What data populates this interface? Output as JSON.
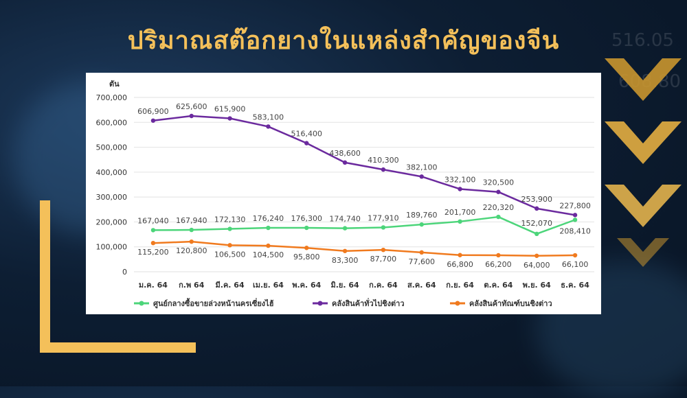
{
  "slide": {
    "title": "ปริมาณสต๊อกยางในแหล่งสำคัญของจีน"
  },
  "colors": {
    "title": "#f4c05a",
    "accent": "#f4c05a",
    "series_green": "#4cd57a",
    "series_purple": "#6b2a9e",
    "series_orange": "#f07a1e"
  },
  "chart_data": {
    "type": "line",
    "ylabel": "ตัน",
    "ylim": [
      0,
      700000
    ],
    "yticks": [
      0,
      100000,
      200000,
      300000,
      400000,
      500000,
      600000,
      700000
    ],
    "ytick_labels": [
      "0",
      "100,000",
      "200,000",
      "300,000",
      "400,000",
      "500,000",
      "600,000",
      "700,000"
    ],
    "grid": true,
    "legend_position": "bottom",
    "categories": [
      "ม.ค. 64",
      "ก.พ 64",
      "มี.ค. 64",
      "เม.ย. 64",
      "พ.ค. 64",
      "มิ.ย. 64",
      "ก.ค. 64",
      "ส.ค. 64",
      "ก.ย. 64",
      "ต.ค. 64",
      "พ.ย. 64",
      "ธ.ค. 64"
    ],
    "series": [
      {
        "name": "ศูนย์กลางซื้อขายล่วงหน้านครเซี่ยงไฮ้",
        "color": "#4cd57a",
        "values": [
          167040,
          167940,
          172130,
          176240,
          176300,
          174740,
          177910,
          189760,
          201700,
          220320,
          152070,
          208410
        ],
        "labels": [
          "167,040",
          "167,940",
          "172,130",
          "176,240",
          "176,300",
          "174,740",
          "177,910",
          "189,760",
          "201,700",
          "220,320",
          "152,070",
          "208,410"
        ]
      },
      {
        "name": "คลังสินค้าทั่วไปชิงต่าว",
        "color": "#6b2a9e",
        "values": [
          606900,
          625600,
          615900,
          583100,
          516400,
          438600,
          410300,
          382100,
          332100,
          320500,
          253900,
          227800
        ],
        "labels": [
          "606,900",
          "625,600",
          "615,900",
          "583,100",
          "516,400",
          "438,600",
          "410,300",
          "382,100",
          "332,100",
          "320,500",
          "253,900",
          "227,800"
        ]
      },
      {
        "name": "คลังสินค้าทัณฑ์บนชิงต่าว",
        "color": "#f07a1e",
        "values": [
          115200,
          120800,
          106500,
          104500,
          95800,
          83300,
          87700,
          77600,
          66800,
          66200,
          64000,
          66100
        ],
        "labels": [
          "115,200",
          "120,800",
          "106,500",
          "104,500",
          "95,800",
          "83,300",
          "87,700",
          "77,600",
          "66,800",
          "66,200",
          "64,000",
          "66,100"
        ]
      }
    ]
  }
}
